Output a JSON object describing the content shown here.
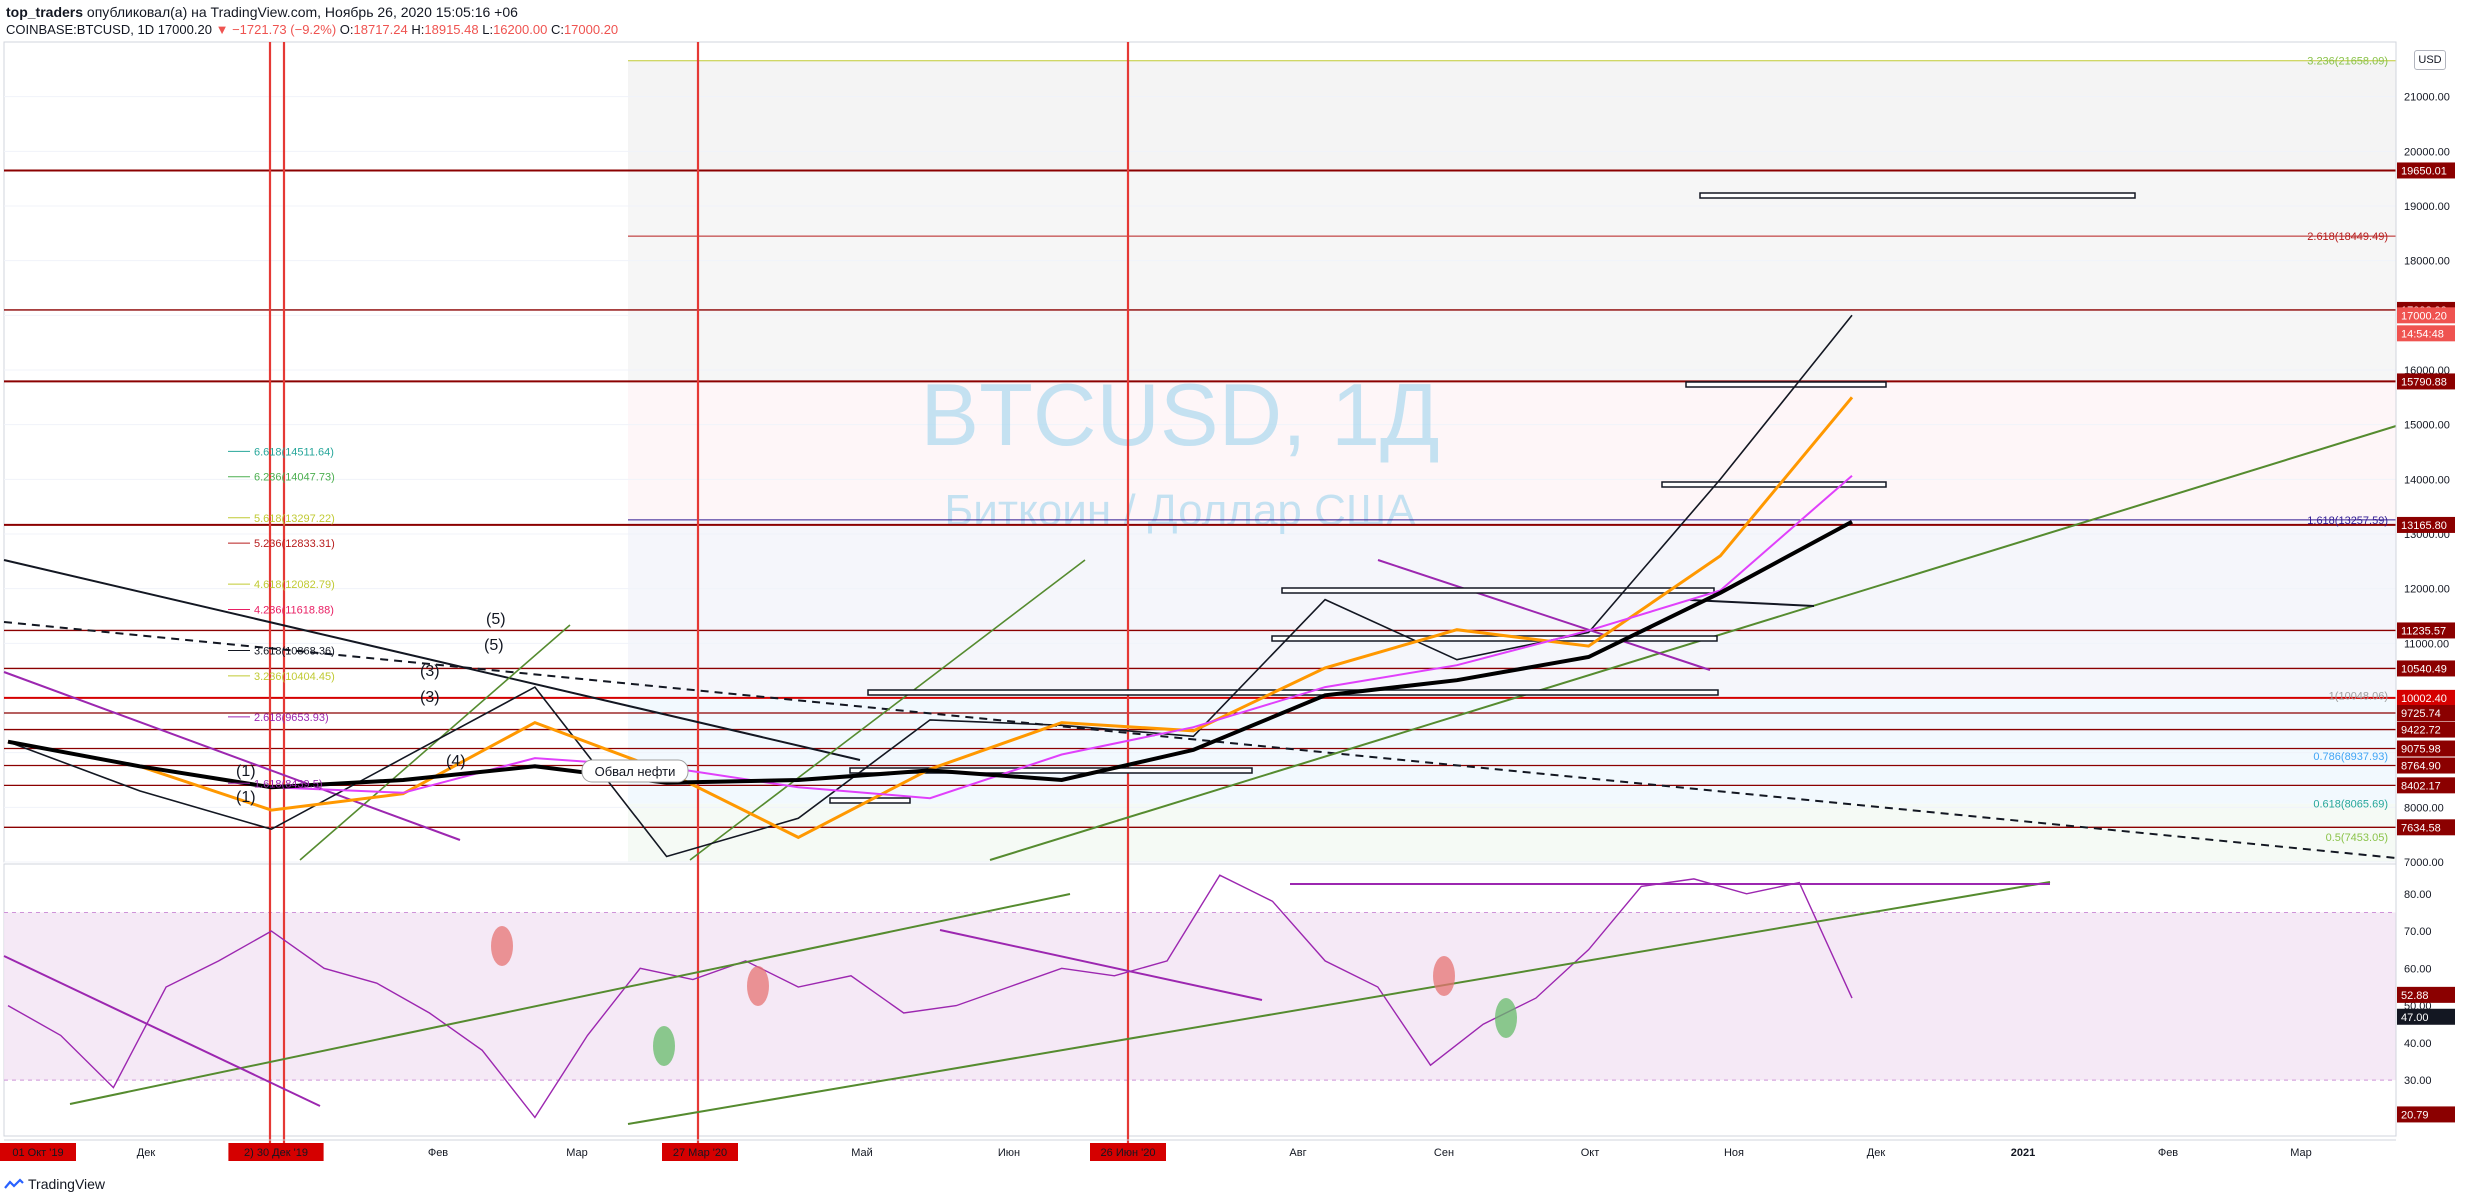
{
  "header": {
    "author": "top_traders",
    "published": "опубликовал(а) на TradingView.com, Ноябрь 26, 2020 15:05:16 +06",
    "symbol": "COINBASE:BTCUSD, 1D",
    "last": "17000.20",
    "change": "−1721.73 (−9.2%)",
    "o_label": "O:",
    "o": "18717.24",
    "h_label": "H:",
    "h": "18915.48",
    "l_label": "L:",
    "l": "16200.00",
    "c_label": "C:",
    "c": "17000.20"
  },
  "watermark": {
    "title": "BTCUSD, 1Д",
    "subtitle": "Биткоин / Доллар США"
  },
  "currency_button": "USD",
  "footer_brand": "TradingView",
  "colors": {
    "up": "#26a69a",
    "down": "#ef5350",
    "level_red": "#8b0000",
    "rsi_line": "#9c27b0"
  },
  "annotation": "Обвал нефти",
  "chart_data": [
    {
      "type": "line",
      "name": "price",
      "price_axis": {
        "ylim": [
          7000,
          22000
        ],
        "ticks": [
          21000,
          20000,
          19000,
          18000,
          17000,
          16000,
          15000,
          14000,
          13000,
          12000,
          11000,
          10000,
          9000,
          8000,
          7000
        ]
      },
      "time_axis": {
        "labels": [
          "01 Окт '19",
          "Дек",
          "2) 30 Дек '19",
          "Фев",
          "Мар",
          "27 Мар '20",
          "Май",
          "Июн",
          "26 Июн '20",
          "Авг",
          "Сен",
          "Окт",
          "Ноя",
          "Дек",
          "2021",
          "Фев",
          "Мар"
        ],
        "highlighted": [
          "01 Окт '19",
          "2) 30 Дек '19",
          "27 Мар '20",
          "26 Июн '20"
        ]
      },
      "series": [
        {
          "name": "close",
          "x": [
            "Окт '19",
            "Ноя '19",
            "Дек '19",
            "Янв '20",
            "Фев '20",
            "Мар '20",
            "Апр '20",
            "Май '20",
            "Июн '20",
            "Июл '20",
            "Авг '20",
            "Сен '20",
            "Окт '20",
            "Ноя '20",
            "26 Ноя '20"
          ],
          "values": [
            9200,
            8300,
            7600,
            8900,
            10200,
            7100,
            7800,
            9600,
            9500,
            9300,
            11800,
            10700,
            11200,
            14000,
            17000
          ]
        }
      ],
      "price_tags": [
        {
          "value": "19650.01",
          "color": "#8b0000"
        },
        {
          "value": "17098.99",
          "color": "#8b0000"
        },
        {
          "value": "17000.20",
          "color": "#ef5350"
        },
        {
          "value": "14:54:48",
          "color": "#ef5350"
        },
        {
          "value": "15790.88",
          "color": "#8b0000"
        },
        {
          "value": "13165.80",
          "color": "#8b0000"
        },
        {
          "value": "11235.57",
          "color": "#8b0000"
        },
        {
          "value": "10540.49",
          "color": "#8b0000"
        },
        {
          "value": "10002.40",
          "color": "#d50000"
        },
        {
          "value": "9725.74",
          "color": "#8b0000"
        },
        {
          "value": "9422.72",
          "color": "#8b0000"
        },
        {
          "value": "9075.98",
          "color": "#8b0000"
        },
        {
          "value": "8764.90",
          "color": "#8b0000"
        },
        {
          "value": "8402.17",
          "color": "#8b0000"
        },
        {
          "value": "7634.58",
          "color": "#8b0000"
        }
      ],
      "fib_right": [
        {
          "label": "3.236(21658.09)",
          "color": "#8bc34a"
        },
        {
          "label": "2.618(18449.49)",
          "color": "#b71c1c"
        },
        {
          "label": "1.618(13257.59)",
          "color": "#311b92"
        },
        {
          "label": "1(10048.06)",
          "color": "#9e9e9e"
        },
        {
          "label": "0.786(8937.93)",
          "color": "#42a5f5"
        },
        {
          "label": "0.618(8065.69)",
          "color": "#26a69a"
        },
        {
          "label": "0.5(7453.05)",
          "color": "#8bc34a"
        }
      ],
      "fib_left": [
        {
          "label": "6.618(14511.64)",
          "color": "#26a69a"
        },
        {
          "label": "6.236(14047.73)",
          "color": "#4caf50"
        },
        {
          "label": "5.618(13297.22)",
          "color": "#c0ca33"
        },
        {
          "label": "5.236(12833.31)",
          "color": "#b71c1c"
        },
        {
          "label": "4.618(12082.79)",
          "color": "#c0ca33"
        },
        {
          "label": "4.236(11618.88)",
          "color": "#e91e63"
        },
        {
          "label": "3.618(10868.36)",
          "color": "#131722"
        },
        {
          "label": "3.236(10404.45)",
          "color": "#c0ca33"
        },
        {
          "label": "2.618(9653.93)",
          "color": "#9c27b0"
        },
        {
          "label": "1.618(8439.5)",
          "color": "#9c27b0"
        }
      ],
      "wave_labels": [
        "(5)",
        "(5)",
        "(3)",
        "(3)",
        "(4)",
        "(1)",
        "(1)"
      ]
    },
    {
      "type": "line",
      "name": "RSI",
      "ylim": [
        15,
        88
      ],
      "ticks": [
        80,
        70,
        60,
        50,
        40,
        30
      ],
      "price_tags": [
        {
          "value": "52.88",
          "color": "#8b0000"
        },
        {
          "value": "47.00",
          "color": "#131722"
        },
        {
          "value": "20.79",
          "color": "#8b0000"
        }
      ],
      "series": [
        {
          "name": "RSI",
          "values": [
            50,
            42,
            28,
            55,
            62,
            70,
            60,
            56,
            48,
            38,
            20,
            42,
            60,
            57,
            62,
            55,
            58,
            48,
            50,
            55,
            60,
            58,
            62,
            85,
            78,
            62,
            55,
            34,
            45,
            52,
            65,
            82,
            84,
            80,
            83,
            52
          ]
        }
      ]
    }
  ]
}
